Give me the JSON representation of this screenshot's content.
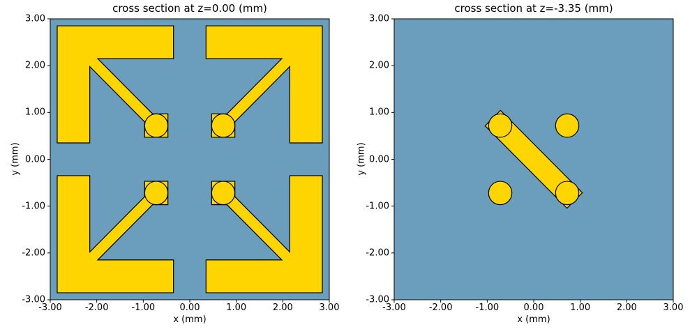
{
  "colors": {
    "material_yellow": "#FFD500",
    "medium_blue": "#6A9EBC",
    "edge": "#000000",
    "figure_background": "#FFFFFF",
    "text": "#000000"
  },
  "chart_data": [
    {
      "type": "polygon_cross_section",
      "title": "cross section at z=0.00 (mm)",
      "xlabel": "x (mm)",
      "ylabel": "y (mm)",
      "xlim": [
        -3,
        3
      ],
      "ylim": [
        -3,
        3
      ],
      "grid": false,
      "legend": null,
      "xticks": [
        "-3.00",
        "-2.00",
        "-1.00",
        "0.00",
        "1.00",
        "2.00",
        "3.00"
      ],
      "yticks": [
        "3.00",
        "2.00",
        "1.00",
        "0.00",
        "-1.00",
        "-2.00",
        "-3.00"
      ],
      "shapes": [
        {
          "kind": "polygon",
          "name": "bracket-arm-top-left",
          "points": [
            [
              -2.85,
              0.35
            ],
            [
              -2.85,
              2.85
            ],
            [
              -0.35,
              2.85
            ],
            [
              -0.35,
              2.15
            ],
            [
              -1.98,
              2.15
            ],
            [
              -0.8,
              0.97
            ],
            [
              -0.47,
              0.97
            ],
            [
              -0.47,
              0.47
            ],
            [
              -0.97,
              0.47
            ],
            [
              -0.97,
              0.8
            ],
            [
              -2.15,
              1.98
            ],
            [
              -2.15,
              0.35
            ]
          ]
        },
        {
          "kind": "polygon",
          "name": "bracket-arm-top-right",
          "points": [
            [
              2.85,
              0.35
            ],
            [
              2.85,
              2.85
            ],
            [
              0.35,
              2.85
            ],
            [
              0.35,
              2.15
            ],
            [
              1.98,
              2.15
            ],
            [
              0.8,
              0.97
            ],
            [
              0.47,
              0.97
            ],
            [
              0.47,
              0.47
            ],
            [
              0.97,
              0.47
            ],
            [
              0.97,
              0.8
            ],
            [
              2.15,
              1.98
            ],
            [
              2.15,
              0.35
            ]
          ]
        },
        {
          "kind": "polygon",
          "name": "bracket-arm-bottom-left",
          "points": [
            [
              -2.85,
              -0.35
            ],
            [
              -2.85,
              -2.85
            ],
            [
              -0.35,
              -2.85
            ],
            [
              -0.35,
              -2.15
            ],
            [
              -1.98,
              -2.15
            ],
            [
              -0.8,
              -0.97
            ],
            [
              -0.47,
              -0.97
            ],
            [
              -0.47,
              -0.47
            ],
            [
              -0.97,
              -0.47
            ],
            [
              -0.97,
              -0.8
            ],
            [
              -2.15,
              -1.98
            ],
            [
              -2.15,
              -0.35
            ]
          ]
        },
        {
          "kind": "polygon",
          "name": "bracket-arm-bottom-right",
          "points": [
            [
              2.85,
              -0.35
            ],
            [
              2.85,
              -2.85
            ],
            [
              0.35,
              -2.85
            ],
            [
              0.35,
              -2.15
            ],
            [
              1.98,
              -2.15
            ],
            [
              0.8,
              -0.97
            ],
            [
              0.47,
              -0.97
            ],
            [
              0.47,
              -0.47
            ],
            [
              0.97,
              -0.47
            ],
            [
              0.97,
              -0.8
            ],
            [
              2.15,
              -1.98
            ],
            [
              2.15,
              -0.35
            ]
          ]
        },
        {
          "kind": "circle",
          "name": "conductor-top-left",
          "c": [
            -0.72,
            0.72
          ],
          "r": 0.25
        },
        {
          "kind": "circle",
          "name": "conductor-top-right",
          "c": [
            0.72,
            0.72
          ],
          "r": 0.25
        },
        {
          "kind": "circle",
          "name": "conductor-bottom-left",
          "c": [
            -0.72,
            -0.72
          ],
          "r": 0.25
        },
        {
          "kind": "circle",
          "name": "conductor-bottom-right",
          "c": [
            0.72,
            -0.72
          ],
          "r": 0.25
        }
      ]
    },
    {
      "type": "polygon_cross_section",
      "title": "cross section at z=-3.35 (mm)",
      "xlabel": "x (mm)",
      "ylabel": "y (mm)",
      "xlim": [
        -3,
        3
      ],
      "ylim": [
        -3,
        3
      ],
      "grid": false,
      "legend": null,
      "xticks": [
        "-3.00",
        "-2.00",
        "-1.00",
        "0.00",
        "1.00",
        "2.00",
        "3.00"
      ],
      "yticks": [
        "3.00",
        "2.00",
        "1.00",
        "0.00",
        "-1.00",
        "-2.00",
        "-3.00"
      ],
      "shapes": [
        {
          "kind": "polygon",
          "name": "diagonal-connector-bar",
          "points": [
            [
              -0.715,
              1.045
            ],
            [
              1.045,
              -0.715
            ],
            [
              0.715,
              -1.045
            ],
            [
              -1.045,
              0.715
            ]
          ]
        },
        {
          "kind": "circle",
          "name": "conductor-top-left",
          "c": [
            -0.72,
            0.72
          ],
          "r": 0.25
        },
        {
          "kind": "circle",
          "name": "conductor-top-right",
          "c": [
            0.72,
            0.72
          ],
          "r": 0.25
        },
        {
          "kind": "circle",
          "name": "conductor-bottom-left",
          "c": [
            -0.72,
            -0.72
          ],
          "r": 0.25
        },
        {
          "kind": "circle",
          "name": "conductor-bottom-right",
          "c": [
            0.72,
            -0.72
          ],
          "r": 0.25
        }
      ]
    }
  ]
}
